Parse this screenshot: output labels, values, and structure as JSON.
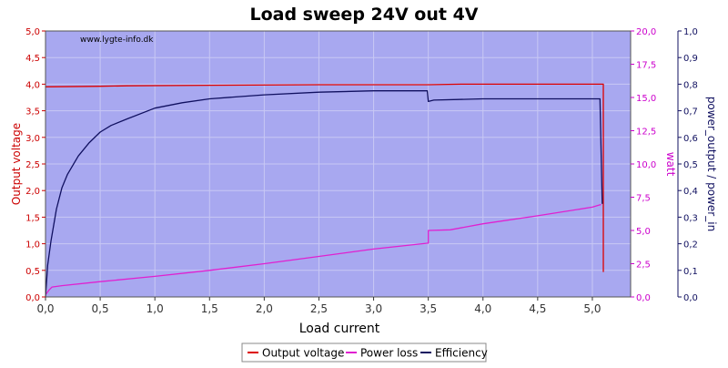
{
  "chart_data": {
    "type": "line",
    "title": "Load sweep 24V out 4V",
    "watermark": "www.lygte-info.dk",
    "xlabel": "Load current",
    "ylabel_left": "Output voltage",
    "ylabel_right1": "watt",
    "ylabel_right2": "power_output / power_in",
    "xlim": [
      0,
      5.35
    ],
    "ylim_left": [
      0,
      5
    ],
    "ylim_right1": [
      0,
      20
    ],
    "ylim_right2": [
      0,
      1
    ],
    "x_ticks": [
      "0,0",
      "0,5",
      "1,0",
      "1,5",
      "2,0",
      "2,5",
      "3,0",
      "3,5",
      "4,0",
      "4,5",
      "5,0"
    ],
    "y_left_ticks": [
      "0,0",
      "0,5",
      "1,0",
      "1,5",
      "2,0",
      "2,5",
      "3,0",
      "3,5",
      "4,0",
      "4,5",
      "5,0"
    ],
    "y_right1_ticks": [
      "0,0",
      "2,5",
      "5,0",
      "7,5",
      "10,0",
      "12,5",
      "15,0",
      "17,5",
      "20,0"
    ],
    "y_right2_ticks": [
      "0,0",
      "0,1",
      "0,2",
      "0,3",
      "0,4",
      "0,5",
      "0,6",
      "0,7",
      "0,8",
      "0,9",
      "1,0"
    ],
    "grid": true,
    "legend_position": "bottom-center",
    "colors": {
      "plot_bg": "#a8a8f0",
      "grid": "#c8c8f4",
      "output_voltage": "#dd0000",
      "power_loss": "#e020d0",
      "efficiency": "#101060",
      "left_axis": "#cc0000",
      "right1_axis": "#cc00cc",
      "right2_axis": "#101060"
    },
    "series": [
      {
        "name": "Output voltage",
        "axis": "left",
        "points": [
          [
            0,
            3.95
          ],
          [
            0.5,
            3.96
          ],
          [
            0.75,
            3.97
          ],
          [
            1.5,
            3.98
          ],
          [
            2.5,
            3.99
          ],
          [
            3.5,
            3.99
          ],
          [
            3.8,
            4.0
          ],
          [
            4.5,
            4.0
          ],
          [
            5.1,
            4.0
          ],
          [
            5.1,
            0.47
          ]
        ]
      },
      {
        "name": "Power loss",
        "axis": "right1",
        "points": [
          [
            0,
            0.15
          ],
          [
            0.03,
            0.5
          ],
          [
            0.06,
            0.75
          ],
          [
            0.15,
            0.85
          ],
          [
            0.5,
            1.15
          ],
          [
            1.0,
            1.55
          ],
          [
            1.5,
            2.0
          ],
          [
            2.0,
            2.5
          ],
          [
            2.5,
            3.05
          ],
          [
            3.0,
            3.6
          ],
          [
            3.5,
            4.05
          ],
          [
            3.5,
            5.0
          ],
          [
            3.7,
            5.05
          ],
          [
            4.0,
            5.5
          ],
          [
            4.5,
            6.1
          ],
          [
            5.0,
            6.75
          ],
          [
            5.08,
            6.95
          ]
        ]
      },
      {
        "name": "Efficiency",
        "axis": "right2",
        "points": [
          [
            0,
            0.0
          ],
          [
            0.02,
            0.12
          ],
          [
            0.05,
            0.21
          ],
          [
            0.1,
            0.33
          ],
          [
            0.15,
            0.41
          ],
          [
            0.2,
            0.46
          ],
          [
            0.3,
            0.53
          ],
          [
            0.4,
            0.58
          ],
          [
            0.5,
            0.62
          ],
          [
            0.6,
            0.645
          ],
          [
            0.75,
            0.67
          ],
          [
            1.0,
            0.71
          ],
          [
            1.25,
            0.73
          ],
          [
            1.5,
            0.745
          ],
          [
            2.0,
            0.76
          ],
          [
            2.5,
            0.77
          ],
          [
            3.0,
            0.775
          ],
          [
            3.49,
            0.775
          ],
          [
            3.5,
            0.735
          ],
          [
            3.55,
            0.74
          ],
          [
            4.0,
            0.745
          ],
          [
            4.5,
            0.745
          ],
          [
            5.07,
            0.745
          ],
          [
            5.09,
            0.35
          ]
        ]
      }
    ]
  }
}
